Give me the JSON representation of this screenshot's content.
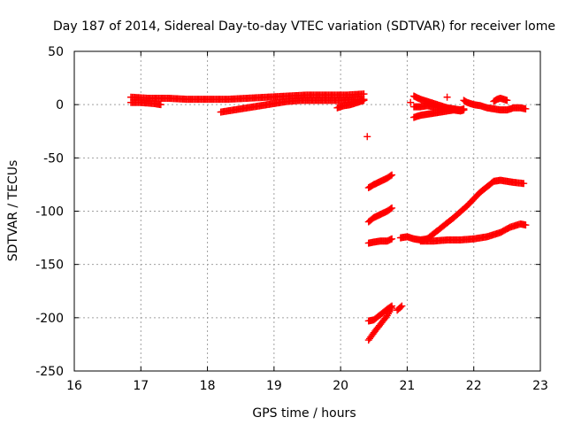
{
  "chart_data": {
    "type": "scatter",
    "title": "Day 187 of 2014, Sidereal Day-to-day VTEC variation (SDTVAR) for receiver lome",
    "xlabel": "GPS time / hours",
    "ylabel": "SDTVAR / TECUs",
    "xlim": [
      16,
      23
    ],
    "ylim": [
      -250,
      50
    ],
    "xticks": [
      "16",
      "17",
      "18",
      "19",
      "20",
      "21",
      "22",
      "23"
    ],
    "yticks": [
      "50",
      "0",
      "-50",
      "-100",
      "-150",
      "-200",
      "-250"
    ],
    "grid": true,
    "marker": "+",
    "color": "#ff0000",
    "segments": [
      {
        "x": [
          16.85,
          17.1,
          17.4,
          17.7,
          18.0,
          18.3,
          18.6,
          18.9,
          19.2,
          19.5,
          19.8,
          20.1,
          20.35
        ],
        "y": [
          7,
          6,
          6,
          5,
          5,
          5,
          6,
          7,
          8,
          9,
          9,
          9,
          10
        ]
      },
      {
        "x": [
          16.85,
          17.0,
          17.2,
          17.3
        ],
        "y": [
          2,
          2,
          1,
          0
        ]
      },
      {
        "x": [
          18.2,
          18.4,
          18.6,
          18.8,
          19.0,
          19.2,
          19.4,
          19.6,
          19.8,
          20.0,
          20.2,
          20.35
        ],
        "y": [
          -7,
          -5,
          -3,
          -1,
          1,
          3,
          4,
          4,
          4,
          4,
          5,
          5
        ]
      },
      {
        "x": [
          19.95,
          20.05,
          20.15,
          20.25,
          20.35
        ],
        "y": [
          -3,
          -1,
          0,
          2,
          4
        ]
      },
      {
        "x": [
          20.4
        ],
        "y": [
          -30
        ]
      },
      {
        "x": [
          20.42,
          20.5,
          20.6,
          20.7,
          20.77
        ],
        "y": [
          -78,
          -75,
          -72,
          -69,
          -66
        ]
      },
      {
        "x": [
          20.42,
          20.5,
          20.6,
          20.7,
          20.77
        ],
        "y": [
          -110,
          -106,
          -103,
          -100,
          -97
        ]
      },
      {
        "x": [
          20.42,
          20.5,
          20.6,
          20.7,
          20.77
        ],
        "y": [
          -130,
          -129,
          -128,
          -128,
          -126
        ]
      },
      {
        "x": [
          20.42,
          20.5,
          20.6,
          20.7,
          20.77
        ],
        "y": [
          -203,
          -202,
          -197,
          -192,
          -189
        ]
      },
      {
        "x": [
          20.42,
          20.5,
          20.6,
          20.7,
          20.77
        ],
        "y": [
          -221,
          -214,
          -206,
          -198,
          -191
        ]
      },
      {
        "x": [
          20.85,
          20.92
        ],
        "y": [
          -193,
          -189
        ]
      },
      {
        "x": [
          20.9,
          21.0,
          21.1,
          21.2,
          21.3
        ],
        "y": [
          -125,
          -124,
          -126,
          -127,
          -126
        ]
      },
      {
        "x": [
          21.3,
          21.5,
          21.7,
          21.9,
          22.1,
          22.2,
          22.3,
          22.4,
          22.5,
          22.6,
          22.75
        ],
        "y": [
          -126,
          -116,
          -106,
          -95,
          -82,
          -77,
          -72,
          -71,
          -72,
          -73,
          -74
        ]
      },
      {
        "x": [
          21.2,
          21.4,
          21.6,
          21.8,
          22.0,
          22.2,
          22.4,
          22.55,
          22.7,
          22.78
        ],
        "y": [
          -128,
          -128,
          -127,
          -127,
          -126,
          -124,
          -120,
          -115,
          -112,
          -113
        ]
      },
      {
        "x": [
          21.05
        ],
        "y": [
          2
        ]
      },
      {
        "x": [
          21.1,
          21.2,
          21.3,
          21.4,
          21.5,
          21.6,
          21.7,
          21.8,
          21.85
        ],
        "y": [
          -12,
          -10,
          -9,
          -8,
          -7,
          -6,
          -5,
          -5,
          -4
        ]
      },
      {
        "x": [
          21.1,
          21.2,
          21.3,
          21.4,
          21.5,
          21.6,
          21.7,
          21.8,
          21.85
        ],
        "y": [
          -2,
          -2,
          -1,
          -2,
          -3,
          -4,
          -5,
          -6,
          -5
        ]
      },
      {
        "x": [
          21.1,
          21.2,
          21.3,
          21.4,
          21.5,
          21.6,
          21.7,
          21.8,
          21.85
        ],
        "y": [
          8,
          5,
          3,
          1,
          -1,
          -3,
          -4,
          -5,
          -5
        ]
      },
      {
        "x": [
          21.6
        ],
        "y": [
          7
        ]
      },
      {
        "x": [
          21.85,
          21.9,
          22.0,
          22.1,
          22.2,
          22.3,
          22.4,
          22.5,
          22.6,
          22.7,
          22.78
        ],
        "y": [
          4,
          2,
          0,
          -1,
          -3,
          -4,
          -5,
          -5,
          -3,
          -3,
          -4
        ]
      },
      {
        "x": [
          22.3,
          22.35,
          22.4,
          22.45,
          22.5
        ],
        "y": [
          3,
          5,
          6,
          5,
          4
        ]
      }
    ]
  }
}
